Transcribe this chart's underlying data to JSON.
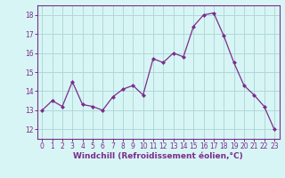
{
  "x": [
    0,
    1,
    2,
    3,
    4,
    5,
    6,
    7,
    8,
    9,
    10,
    11,
    12,
    13,
    14,
    15,
    16,
    17,
    18,
    19,
    20,
    21,
    22,
    23
  ],
  "y": [
    13.0,
    13.5,
    13.2,
    14.5,
    13.3,
    13.2,
    13.0,
    13.7,
    14.1,
    14.3,
    13.8,
    15.7,
    15.5,
    16.0,
    15.8,
    17.4,
    18.0,
    18.1,
    16.9,
    15.5,
    14.3,
    13.8,
    13.2,
    12.0
  ],
  "line_color": "#7b2d8b",
  "marker": "D",
  "marker_size": 2,
  "bg_color": "#d8f5f5",
  "grid_color": "#b0d8d8",
  "xlabel": "Windchill (Refroidissement éolien,°C)",
  "xlabel_color": "#7b2d8b",
  "tick_color": "#7b2d8b",
  "spine_color": "#7b2d8b",
  "ylim": [
    11.5,
    18.5
  ],
  "xlim": [
    -0.5,
    23.5
  ],
  "yticks": [
    12,
    13,
    14,
    15,
    16,
    17,
    18
  ],
  "xticks": [
    0,
    1,
    2,
    3,
    4,
    5,
    6,
    7,
    8,
    9,
    10,
    11,
    12,
    13,
    14,
    15,
    16,
    17,
    18,
    19,
    20,
    21,
    22,
    23
  ],
  "tick_fontsize": 5.5,
  "xlabel_fontsize": 6.5
}
